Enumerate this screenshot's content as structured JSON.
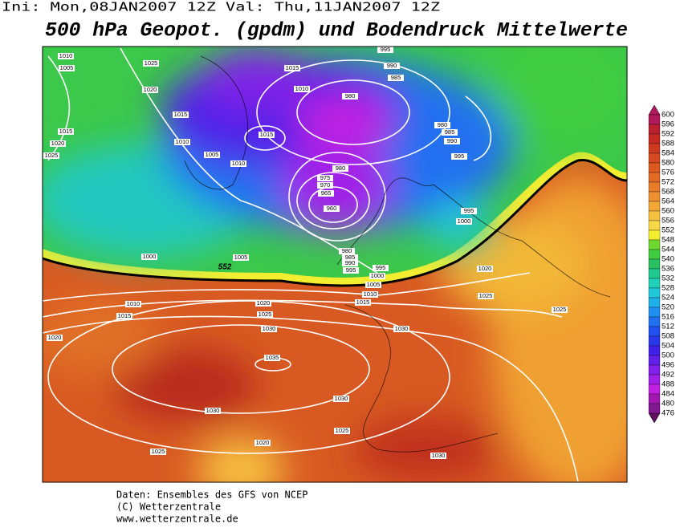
{
  "header": {
    "run": "Ini: Mon,08JAN2007  12Z Val: Thu,11JAN2007  12Z",
    "title": "500 hPa Geopot. (gpdm) und Bodendruck Mittelwerte"
  },
  "map": {
    "isobar_labels": [
      1010,
      1005,
      1025,
      1020,
      1015,
      1010,
      1005,
      1010,
      1015,
      1015,
      1010,
      995,
      990,
      985,
      980,
      980,
      985,
      990,
      995,
      980,
      975,
      970,
      965,
      960,
      995,
      1000,
      1015,
      1020,
      1025,
      1000,
      1005,
      980,
      985,
      990,
      995,
      995,
      1000,
      1005,
      1010,
      1015,
      1020,
      1025,
      1025,
      1010,
      1015,
      1020,
      1025,
      1030,
      1030,
      1020,
      1035,
      1030,
      1030,
      1025,
      1020,
      1025,
      1030
    ],
    "contour_labels": [
      552
    ]
  },
  "legend": {
    "levels": [
      600,
      596,
      592,
      588,
      584,
      580,
      576,
      572,
      568,
      564,
      560,
      556,
      552,
      548,
      544,
      540,
      536,
      532,
      528,
      524,
      520,
      516,
      512,
      508,
      504,
      500,
      496,
      492,
      488,
      484,
      480,
      476
    ],
    "colors": [
      "#b0195a",
      "#b8202f",
      "#c42a22",
      "#cd3a20",
      "#d54a20",
      "#dc5a22",
      "#e26a25",
      "#e87c28",
      "#ee9030",
      "#f2a838",
      "#f6c040",
      "#f8d848",
      "#f4ee30",
      "#6ed830",
      "#40cc40",
      "#28c060",
      "#20c890",
      "#20d0b8",
      "#20c8d8",
      "#20b0e8",
      "#2090f0",
      "#2070f0",
      "#2050f0",
      "#2838e8",
      "#4020e8",
      "#6020e8",
      "#8020e8",
      "#a020e8",
      "#c020e0",
      "#a018b0",
      "#801890",
      "#601060"
    ]
  },
  "footer": {
    "lines": [
      "Daten: Ensembles des GFS von NCEP",
      "(C) Wetterzentrale",
      "www.wetterzentrale.de"
    ]
  }
}
